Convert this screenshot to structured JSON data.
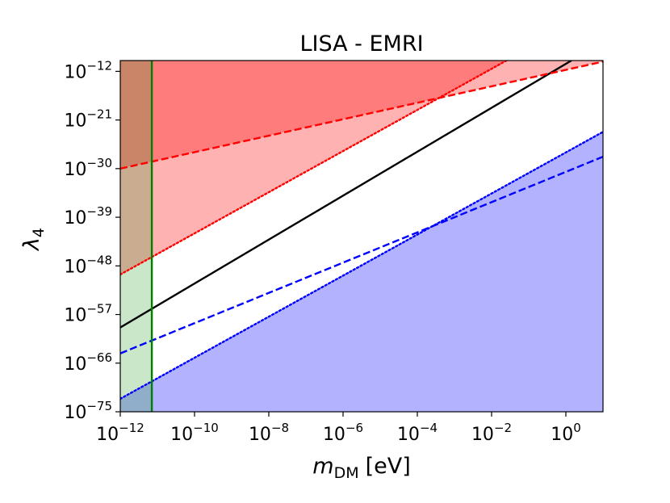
{
  "chart_data": {
    "type": "line",
    "title": "LISA - EMRI",
    "xlabel": {
      "symbol": "m",
      "subscript": "DM",
      "unit": "[eV]"
    },
    "ylabel": {
      "symbol": "λ",
      "subscript": "4"
    },
    "xscale": "log",
    "yscale": "log",
    "xlim_exp": [
      -12,
      1
    ],
    "ylim_exp": [
      -75,
      -10
    ],
    "x_ticks": [
      {
        "base": "10",
        "exp": "−12",
        "value_exp": -12
      },
      {
        "base": "10",
        "exp": "−10",
        "value_exp": -10
      },
      {
        "base": "10",
        "exp": "−8",
        "value_exp": -8
      },
      {
        "base": "10",
        "exp": "−6",
        "value_exp": -6
      },
      {
        "base": "10",
        "exp": "−4",
        "value_exp": -4
      },
      {
        "base": "10",
        "exp": "−2",
        "value_exp": -2
      },
      {
        "base": "10",
        "exp": "0",
        "value_exp": 0
      }
    ],
    "y_ticks": [
      {
        "base": "10",
        "exp": "−12",
        "value_exp": -12
      },
      {
        "base": "10",
        "exp": "−21",
        "value_exp": -21
      },
      {
        "base": "10",
        "exp": "−30",
        "value_exp": -30
      },
      {
        "base": "10",
        "exp": "−39",
        "value_exp": -39
      },
      {
        "base": "10",
        "exp": "−48",
        "value_exp": -48
      },
      {
        "base": "10",
        "exp": "−57",
        "value_exp": -57
      },
      {
        "base": "10",
        "exp": "−66",
        "value_exp": -66
      },
      {
        "base": "10",
        "exp": "−75",
        "value_exp": -75
      }
    ],
    "regions": [
      {
        "name": "red-dashed-excluded",
        "color": "#ff0000",
        "opacity": 0.3,
        "boundary": "red-dashed",
        "side": "above"
      },
      {
        "name": "red-dotted-excluded",
        "color": "#ff0000",
        "opacity": 0.3,
        "boundary": "red-dotted",
        "side": "above"
      },
      {
        "name": "blue-dotted-excluded",
        "color": "#0000ff",
        "opacity": 0.3,
        "boundary": "blue-dotted",
        "side": "below"
      },
      {
        "name": "green-mass-excluded",
        "color": "#2ca02c",
        "opacity": 0.25,
        "x_max_exp": -11.15
      }
    ],
    "series": [
      {
        "name": "black-solid",
        "color": "#000000",
        "dash": "solid",
        "x_exp": [
          -12,
          0.15
        ],
        "y_exp": [
          -59.4,
          -10
        ]
      },
      {
        "name": "red-dashed",
        "color": "#ff0000",
        "dash": "dashed",
        "x_exp": [
          -12,
          1
        ],
        "y_exp": [
          -30,
          -10.2
        ]
      },
      {
        "name": "red-dotted",
        "color": "#ff0000",
        "dash": "dotted",
        "x_exp": [
          -12,
          -1.6
        ],
        "y_exp": [
          -49.6,
          -10
        ]
      },
      {
        "name": "blue-dashed",
        "color": "#0000ff",
        "dash": "dashed",
        "x_exp": [
          -12,
          1
        ],
        "y_exp": [
          -64.2,
          -27.8
        ]
      },
      {
        "name": "blue-dotted",
        "color": "#0000ff",
        "dash": "dotted",
        "x_exp": [
          -12,
          1
        ],
        "y_exp": [
          -72.6,
          -23.2
        ]
      },
      {
        "name": "green-vertical",
        "color": "#008000",
        "dash": "solid",
        "x_exp": [
          -11.15,
          -11.15
        ],
        "y_exp": [
          -75,
          -10
        ]
      }
    ]
  }
}
